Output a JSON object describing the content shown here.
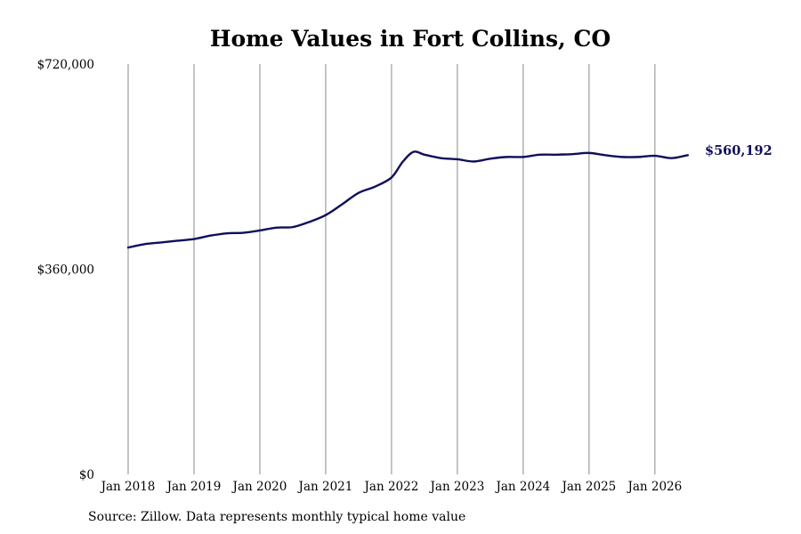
{
  "chart_data": {
    "type": "line",
    "title": "Home Values in Fort Collins, CO",
    "xlabel": "",
    "ylabel": "",
    "xlim": [
      "2018-01",
      "2026-08"
    ],
    "ylim": [
      0,
      720000
    ],
    "y_ticks": [
      {
        "value": 0,
        "label": "$0"
      },
      {
        "value": 360000,
        "label": "$360,000"
      },
      {
        "value": 720000,
        "label": "$720,000"
      }
    ],
    "x_ticks": [
      {
        "value": "2018-01",
        "label": "Jan 2018"
      },
      {
        "value": "2019-01",
        "label": "Jan 2019"
      },
      {
        "value": "2020-01",
        "label": "Jan 2020"
      },
      {
        "value": "2021-01",
        "label": "Jan 2021"
      },
      {
        "value": "2022-01",
        "label": "Jan 2022"
      },
      {
        "value": "2023-01",
        "label": "Jan 2023"
      },
      {
        "value": "2024-01",
        "label": "Jan 2024"
      },
      {
        "value": "2025-01",
        "label": "Jan 2025"
      },
      {
        "value": "2026-01",
        "label": "Jan 2026"
      }
    ],
    "grid": {
      "vertical": true,
      "horizontal": false
    },
    "line_color": "#0f0f5a",
    "grid_color": "#8a8a8a",
    "end_label": "$560,192",
    "series": [
      {
        "x": [
          "2018-01",
          "2018-04",
          "2018-07",
          "2018-10",
          "2019-01",
          "2019-04",
          "2019-07",
          "2019-10",
          "2020-01",
          "2020-04",
          "2020-07",
          "2020-10",
          "2021-01",
          "2021-04",
          "2021-07",
          "2021-10",
          "2022-01",
          "2022-03",
          "2022-05",
          "2022-07",
          "2022-10",
          "2023-01",
          "2023-04",
          "2023-07",
          "2023-10",
          "2024-01",
          "2024-04",
          "2024-07",
          "2024-10",
          "2025-01",
          "2025-04",
          "2025-07",
          "2025-10",
          "2026-01",
          "2026-04",
          "2026-07"
        ],
        "values": [
          398000,
          404000,
          407000,
          410000,
          413000,
          419000,
          423000,
          424000,
          428000,
          433000,
          434000,
          443000,
          455000,
          474000,
          494000,
          505000,
          521000,
          548000,
          566000,
          561000,
          555000,
          553000,
          549000,
          554000,
          557000,
          557000,
          561000,
          561000,
          562000,
          564000,
          560000,
          557000,
          557000,
          559000,
          555000,
          560192
        ]
      }
    ]
  },
  "source": "Source: Zillow. Data represents monthly typical home value"
}
